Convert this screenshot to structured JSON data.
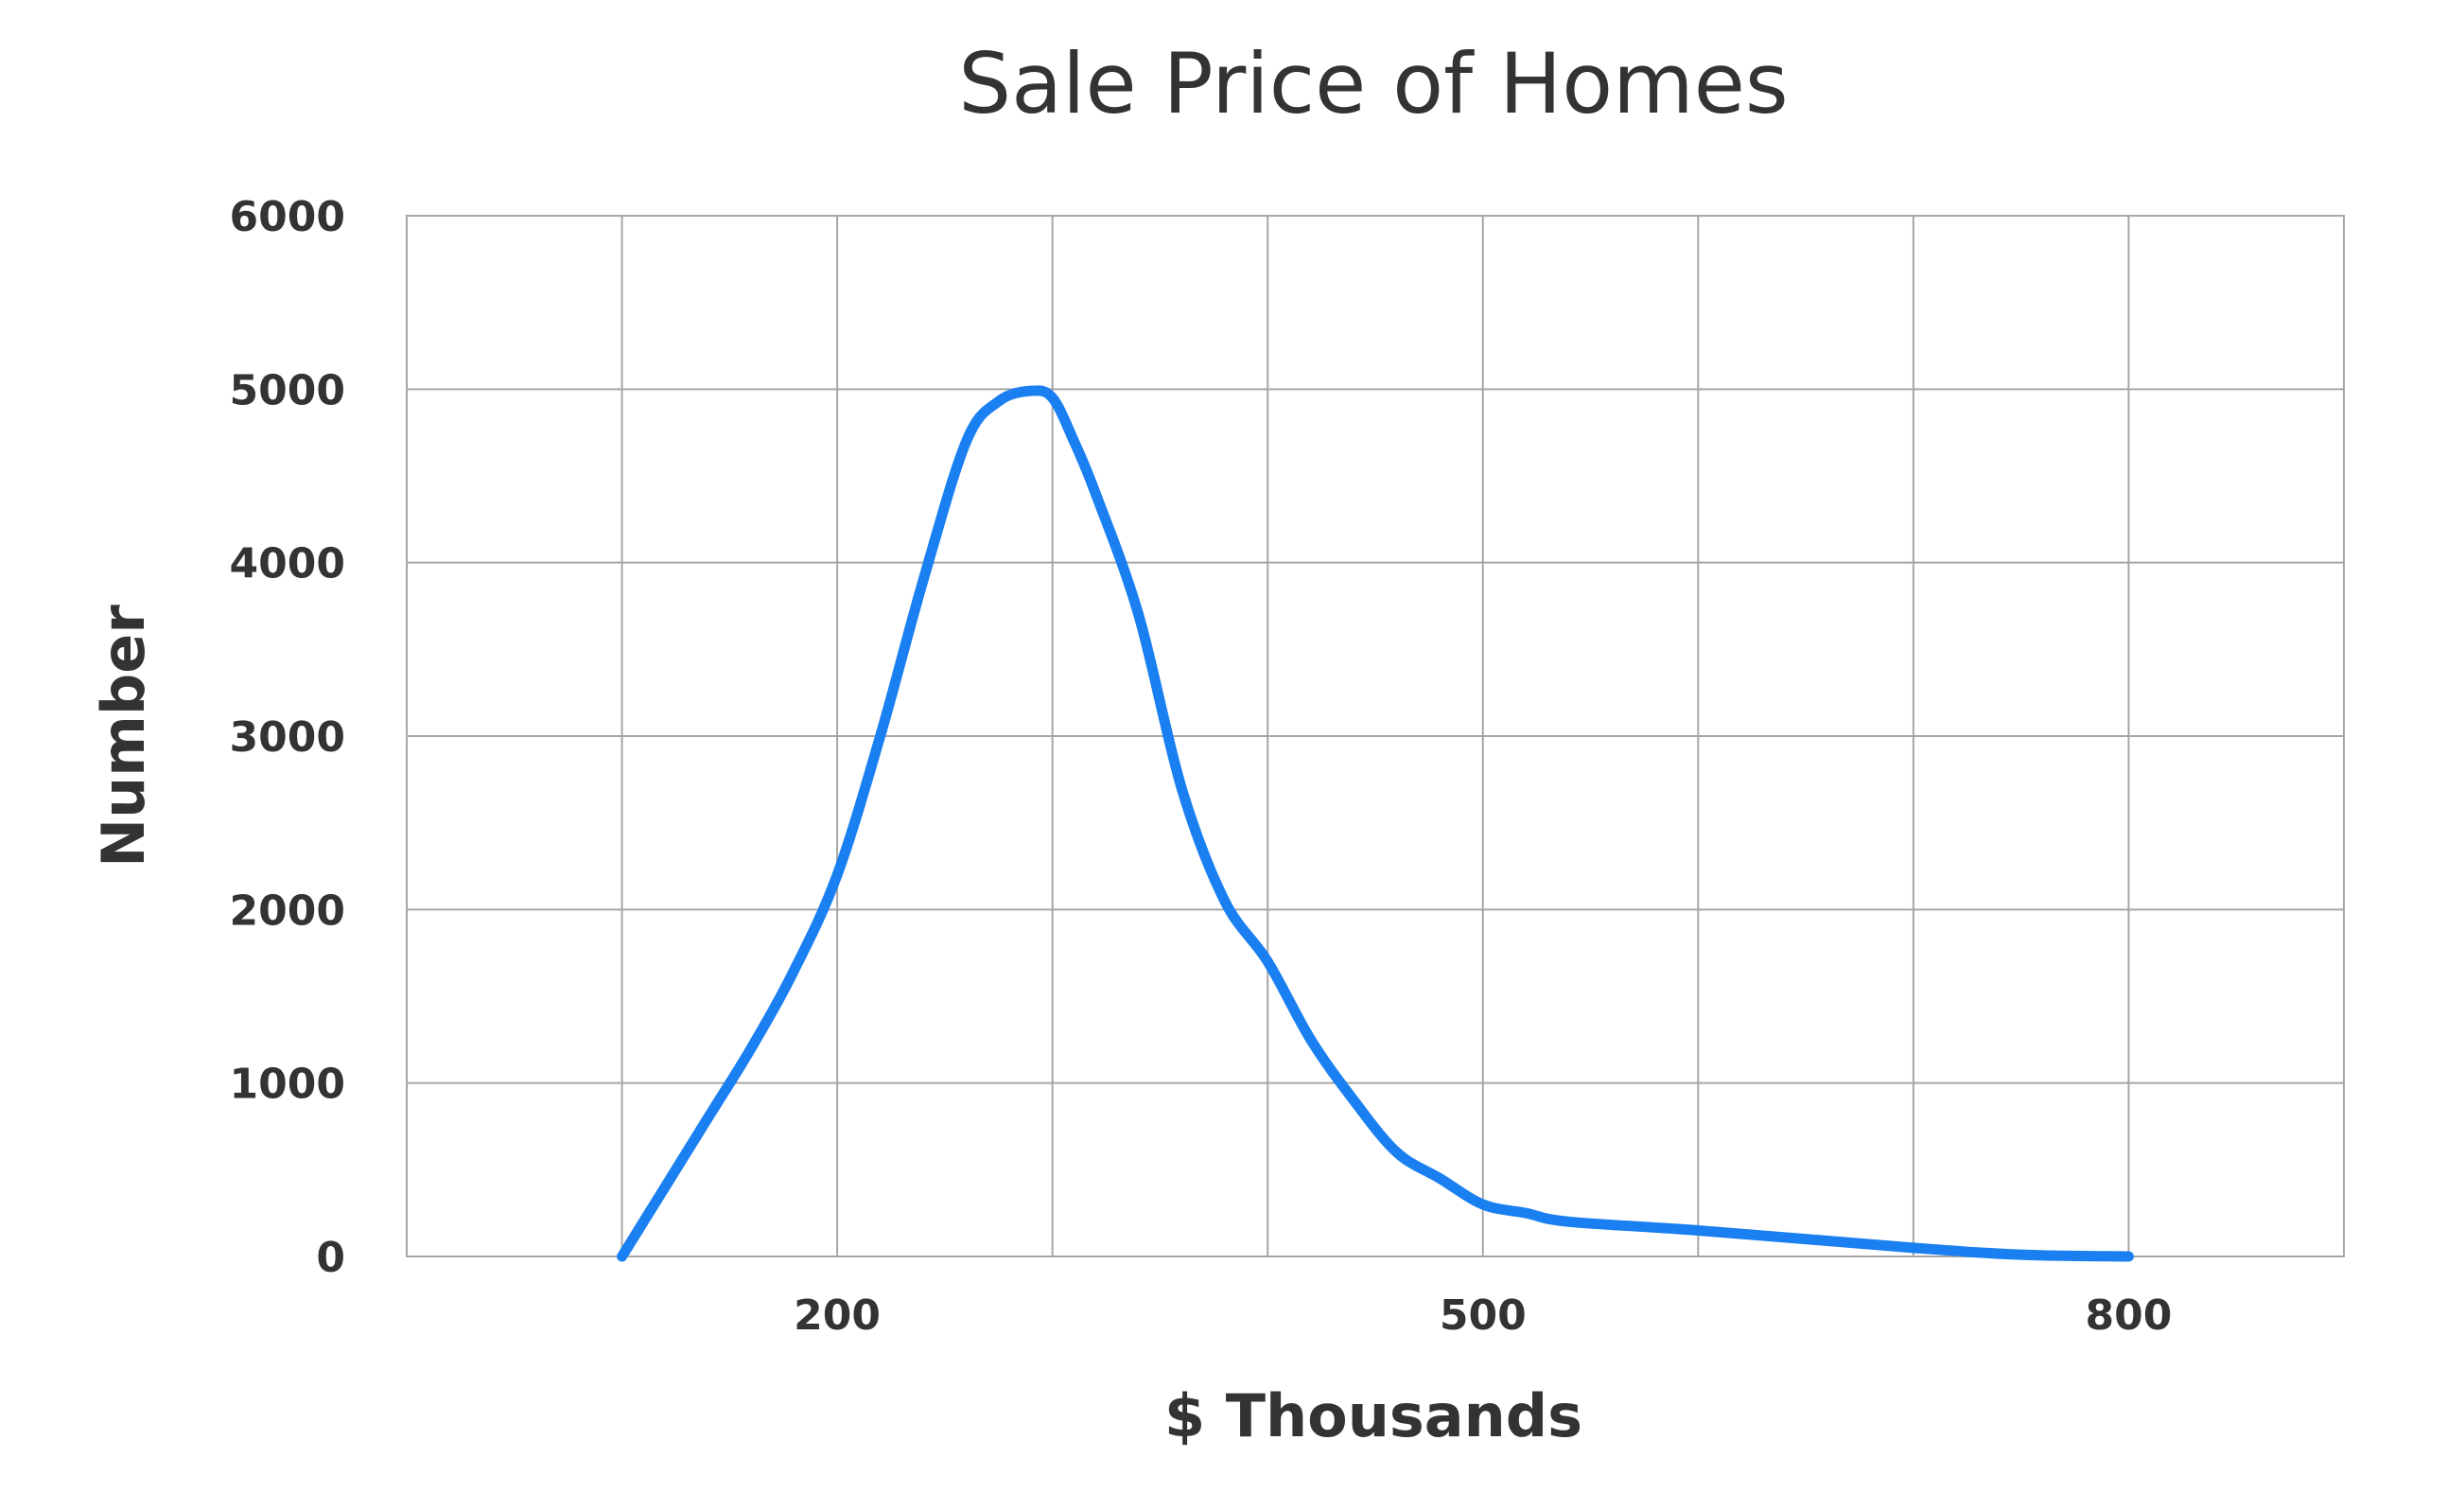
{
  "chart_data": {
    "type": "line",
    "title": "Sale Price of Homes",
    "xlabel": "$ Thousands",
    "ylabel": "Number",
    "xlim": [
      0,
      900
    ],
    "ylim": [
      0,
      6000
    ],
    "x_gridlines": [
      100,
      200,
      300,
      400,
      500,
      600,
      700,
      800
    ],
    "y_ticks": [
      0,
      1000,
      2000,
      3000,
      4000,
      5000,
      6000
    ],
    "x_tick_labels": [
      {
        "value": 200,
        "label": "200"
      },
      {
        "value": 500,
        "label": "500"
      },
      {
        "value": 800,
        "label": "800"
      }
    ],
    "grid": true,
    "series": [
      {
        "color": "#1a7ff0",
        "x": [
          100,
          120,
          140,
          160,
          180,
          200,
          220,
          240,
          260,
          275,
          290,
          300,
          310,
          320,
          340,
          360,
          380,
          400,
          420,
          440,
          460,
          480,
          500,
          520,
          540,
          600,
          700,
          750,
          800
        ],
        "y": [
          0,
          400,
          800,
          1200,
          1650,
          2200,
          3000,
          3900,
          4700,
          4930,
          4990,
          4950,
          4700,
          4400,
          3700,
          2700,
          2050,
          1700,
          1250,
          900,
          600,
          450,
          300,
          250,
          200,
          150,
          50,
          10,
          0
        ]
      }
    ]
  }
}
